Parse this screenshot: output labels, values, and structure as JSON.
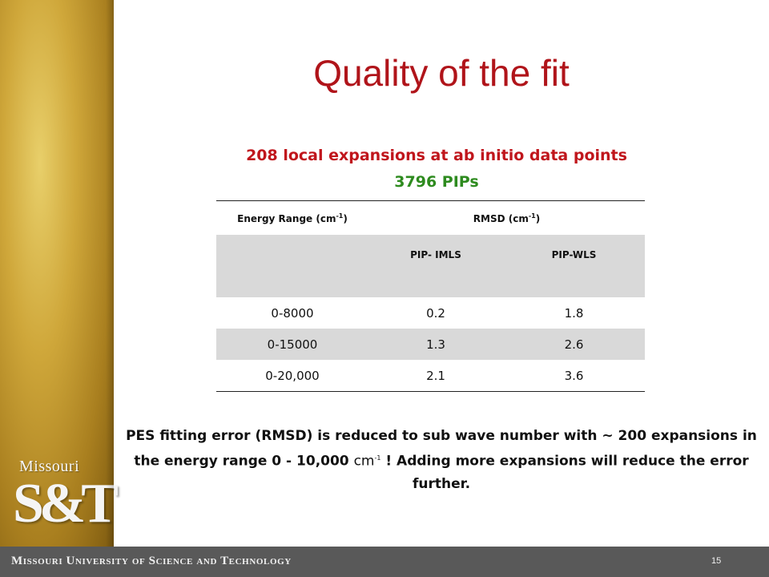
{
  "slide": {
    "title": "Quality of the fit",
    "subtitle_line1": "208 local expansions at ab initio data points",
    "subtitle_line2": "3796 PIPs",
    "page_number": "15"
  },
  "table": {
    "col1_header": "Energy Range (cm",
    "col2_header": "RMSD (cm",
    "exp": "-1",
    "close": ")",
    "sub_headers": [
      "",
      "PIP- IMLS",
      "PIP-WLS"
    ],
    "rows": [
      [
        "0-8000",
        "0.2",
        "1.8"
      ],
      [
        "0-15000",
        "1.3",
        "2.6"
      ],
      [
        "0-20,000",
        "2.1",
        "3.6"
      ]
    ]
  },
  "conclusion": {
    "part1": "PES fitting error (RMSD) is reduced to sub wave number with ~ 200 expansions in the energy range 0 - 10,000 ",
    "unit": "cm",
    "unit_exp": "-1",
    "part2": " !  Adding more expansions will reduce the error further."
  },
  "branding": {
    "logo_word": "Missouri",
    "logo_mono": "S&T",
    "footer": "Missouri University of Science and Technology"
  },
  "colors": {
    "title": "#b0141a",
    "subtitle_red": "#c0161c",
    "subtitle_green": "#2e8b1f",
    "footer_bar": "#595959",
    "table_shade": "#d9d9d9"
  }
}
